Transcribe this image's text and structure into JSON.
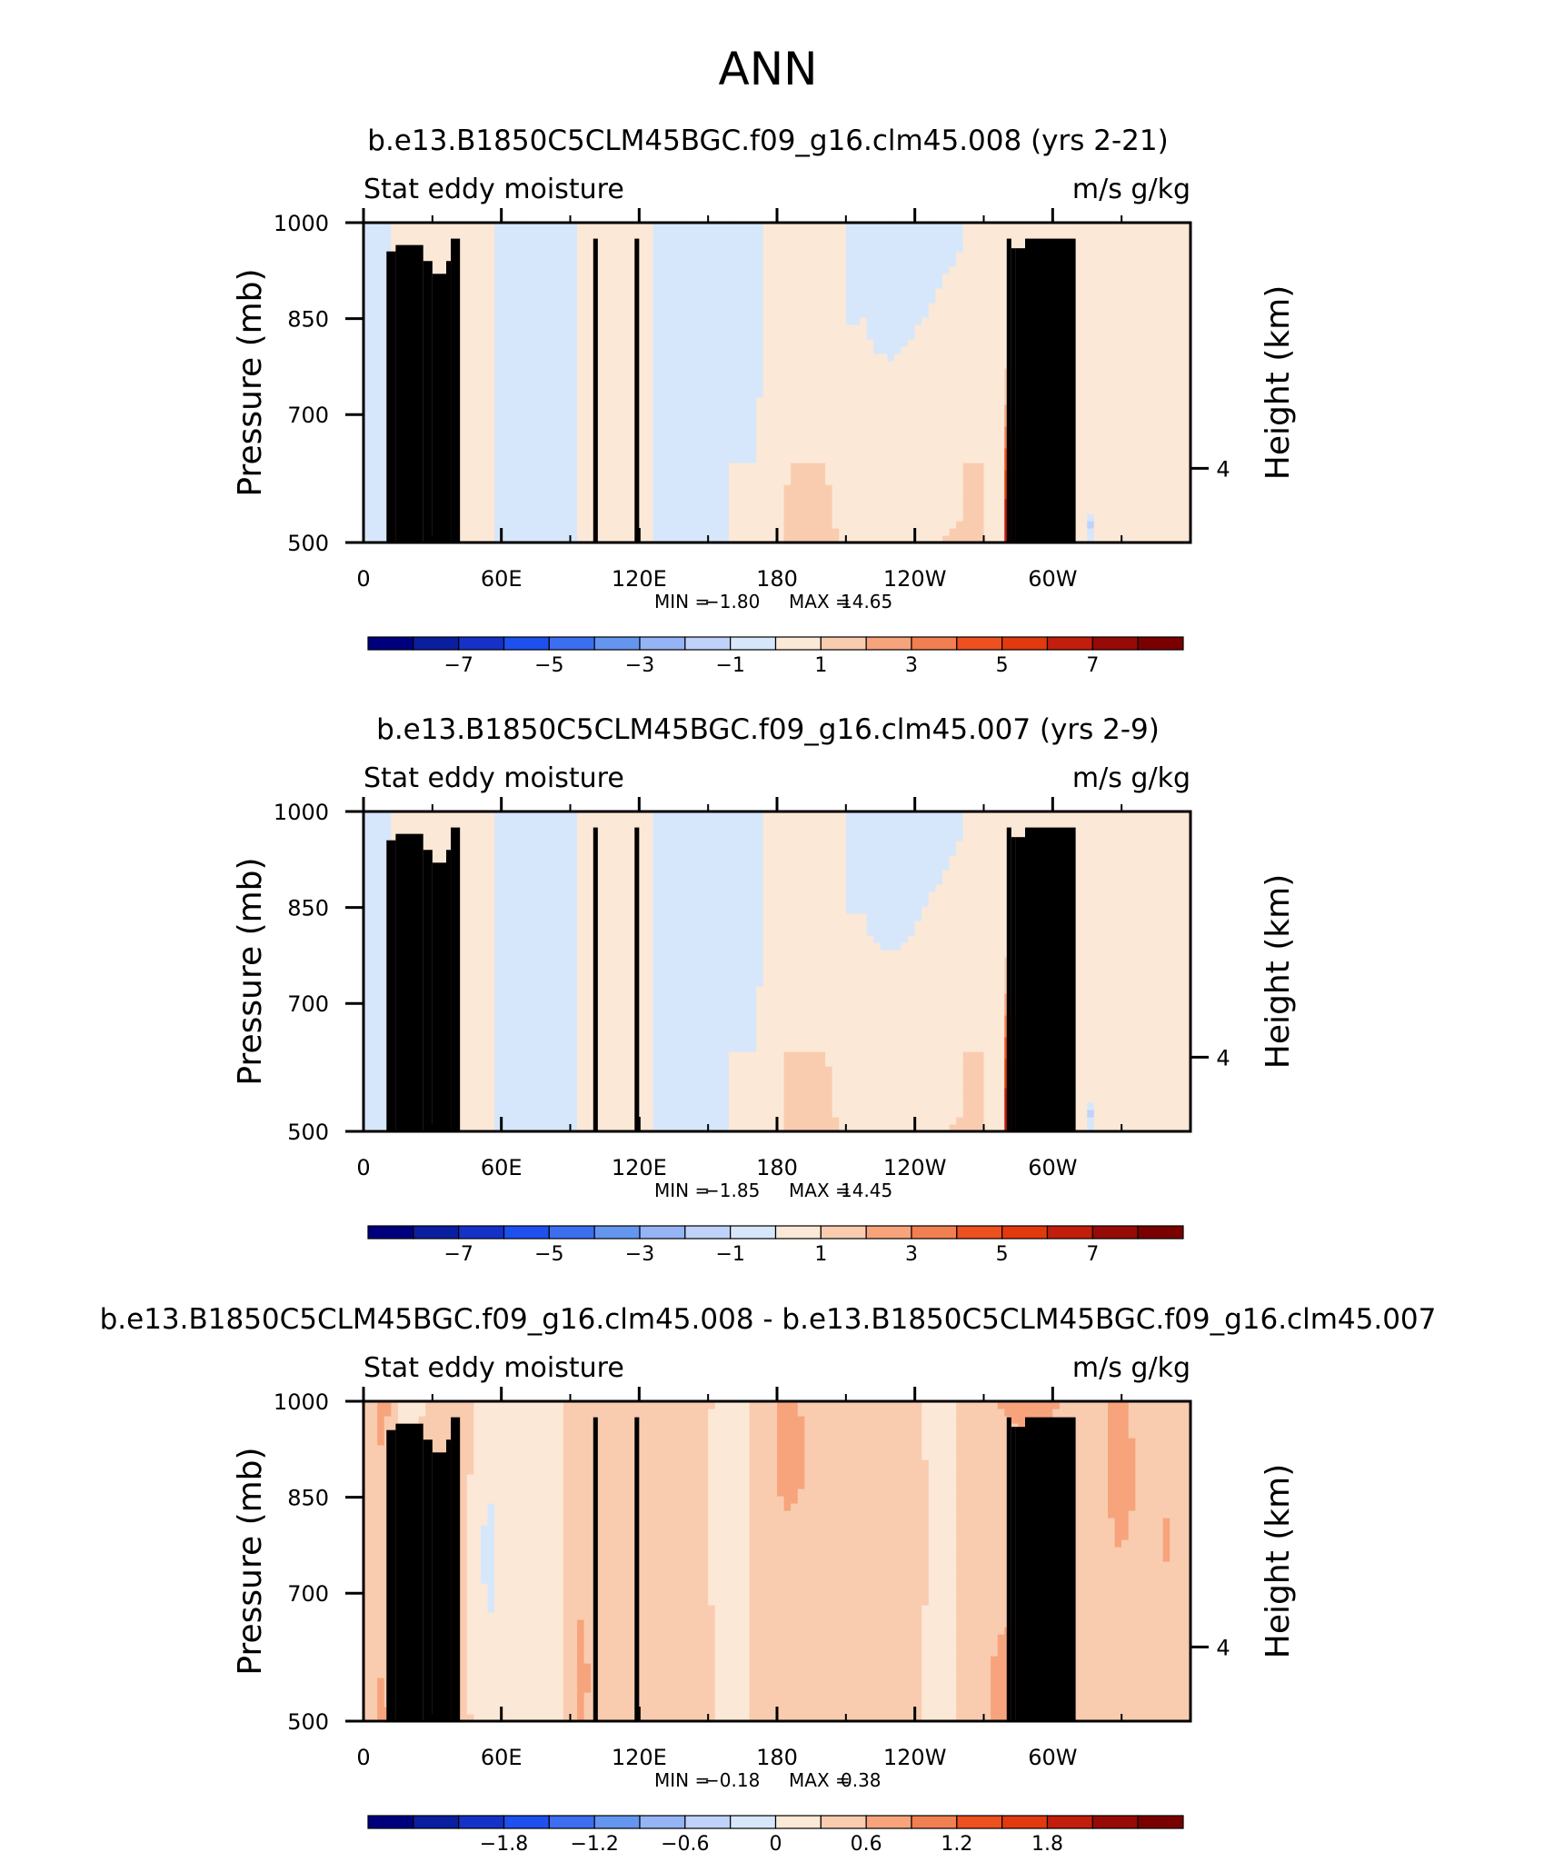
{
  "page_title": "ANN",
  "chart_data": [
    {
      "type": "heatmap",
      "title": "b.e13.B1850C5CLM45BGC.f09_g16.clm45.008 (yrs 2-21)",
      "left_string": "Stat eddy moisture",
      "right_string": "m/s g/kg",
      "ylabel": "Pressure (mb)",
      "ylabel_right": "Height (km)",
      "yticks": [
        "500",
        "700",
        "850",
        "1000"
      ],
      "yticks_right": [
        "4"
      ],
      "xticks": [
        "0",
        "60E",
        "120E",
        "180",
        "120W",
        "60W"
      ],
      "xlim": [
        0,
        360
      ],
      "ylim": [
        1000,
        500
      ],
      "min_label": "MIN =",
      "min_value": "−1.80",
      "max_label": "MAX =",
      "max_value": "14.65",
      "colorbar_labels": [
        "−7",
        "−5",
        "−3",
        "−1",
        "1",
        "3",
        "5",
        "7"
      ],
      "field_scale": 1,
      "spike_max": 14.65,
      "orange_band_scale": 1
    },
    {
      "type": "heatmap",
      "title": "b.e13.B1850C5CLM45BGC.f09_g16.clm45.007 (yrs 2-9)",
      "left_string": "Stat eddy moisture",
      "right_string": "m/s g/kg",
      "ylabel": "Pressure (mb)",
      "ylabel_right": "Height (km)",
      "yticks": [
        "500",
        "700",
        "850",
        "1000"
      ],
      "yticks_right": [
        "4"
      ],
      "xticks": [
        "0",
        "60E",
        "120E",
        "180",
        "120W",
        "60W"
      ],
      "xlim": [
        0,
        360
      ],
      "ylim": [
        1000,
        500
      ],
      "min_label": "MIN =",
      "min_value": "−1.85",
      "max_label": "MAX =",
      "max_value": "14.45",
      "colorbar_labels": [
        "−7",
        "−5",
        "−3",
        "−1",
        "1",
        "3",
        "5",
        "7"
      ],
      "field_scale": 1,
      "spike_max": 14.45,
      "orange_band_scale": 1.05
    },
    {
      "type": "heatmap",
      "title": "b.e13.B1850C5CLM45BGC.f09_g16.clm45.008 - b.e13.B1850C5CLM45BGC.f09_g16.clm45.007",
      "left_string": "Stat eddy moisture",
      "right_string": "m/s g/kg",
      "ylabel": "Pressure (mb)",
      "ylabel_right": "Height (km)",
      "yticks": [
        "500",
        "700",
        "850",
        "1000"
      ],
      "yticks_right": [
        "4"
      ],
      "xticks": [
        "0",
        "60E",
        "120E",
        "180",
        "120W",
        "60W"
      ],
      "xlim": [
        0,
        360
      ],
      "ylim": [
        1000,
        500
      ],
      "min_label": "MIN =",
      "min_value": "−0.18",
      "max_label": "MAX =",
      "max_value": "0.38",
      "colorbar_labels": [
        "−1.8",
        "−1.2",
        "−0.6",
        "0",
        "0.6",
        "1.2",
        "1.8"
      ],
      "field_scale": 0,
      "spike_max": 0,
      "orange_band_scale": 0
    }
  ],
  "colors": {
    "palette": [
      "#00007f",
      "#0a1ea0",
      "#1432c8",
      "#1e50f0",
      "#3c6ef0",
      "#6496f0",
      "#94b4f5",
      "#c0d2fa",
      "#d7e7fb",
      "#fce8d6",
      "#f9ccb0",
      "#f7a47c",
      "#f27f51",
      "#ee5020",
      "#e23a0e",
      "#c21e0b",
      "#970a05",
      "#7a0000"
    ],
    "land": "#000000",
    "axes": "#000000",
    "text": "#000000"
  }
}
